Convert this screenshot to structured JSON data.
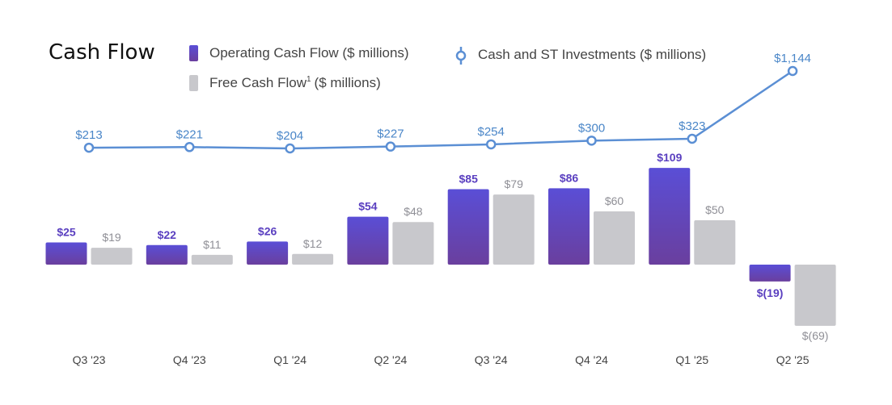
{
  "chart_data": {
    "type": "bar",
    "title": "Cash Flow",
    "categories": [
      "Q3 '23",
      "Q4 '23",
      "Q1 '24",
      "Q2 '24",
      "Q3 '24",
      "Q4 '24",
      "Q1 '25",
      "Q2 '25"
    ],
    "series": [
      {
        "name": "Operating Cash Flow ($ millions)",
        "kind": "bar",
        "color": "#5b47cf",
        "values": [
          25,
          22,
          26,
          54,
          85,
          86,
          109,
          -19
        ],
        "labels": [
          "$25",
          "$22",
          "$26",
          "$54",
          "$85",
          "$86",
          "$109",
          "$(19)"
        ]
      },
      {
        "name": "Free Cash Flow",
        "name_sup": "1",
        "name_suffix": "($ millions)",
        "kind": "bar",
        "color": "#c8c8cc",
        "values": [
          19,
          11,
          12,
          48,
          79,
          60,
          50,
          -69
        ],
        "labels": [
          "$19",
          "$11",
          "$12",
          "$48",
          "$79",
          "$60",
          "$50",
          "$(69)"
        ]
      },
      {
        "name": "Cash and ST Investments ($ millions)",
        "kind": "line",
        "color": "#5b8fd4",
        "values": [
          213,
          221,
          204,
          227,
          254,
          300,
          323,
          1144
        ],
        "labels": [
          "$213",
          "$221",
          "$204",
          "$227",
          "$254",
          "$300",
          "$323",
          "$1,144"
        ]
      }
    ],
    "xlabel": "",
    "ylabel": "",
    "grid": false,
    "legend": "top"
  }
}
